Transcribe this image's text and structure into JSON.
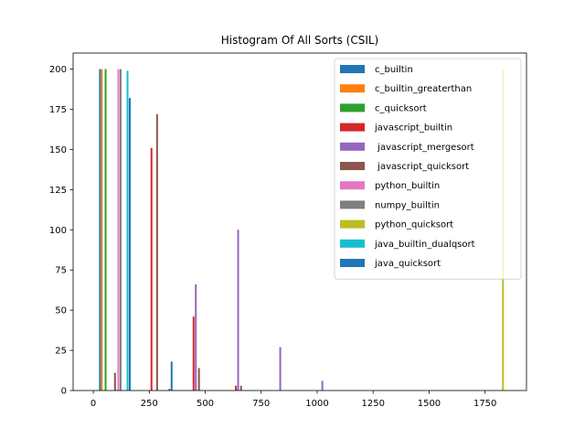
{
  "chart_data": {
    "type": "bar",
    "title": "Histogram Of All Sorts (CSIL)",
    "xlabel": "",
    "ylabel": "",
    "xlim": [
      -90,
      1935
    ],
    "ylim": [
      0,
      210
    ],
    "x_ticks": [
      0,
      250,
      500,
      750,
      1000,
      1250,
      1500,
      1750
    ],
    "y_ticks": [
      0,
      25,
      50,
      75,
      100,
      125,
      150,
      175,
      200
    ],
    "grid": false,
    "legend_position": "top-right",
    "bar_width": 8.2,
    "series": [
      {
        "name": "c_builtin",
        "color": "#1f77b4",
        "bars": [
          {
            "x": 30,
            "y": 200
          }
        ]
      },
      {
        "name": "c_builtin_greaterthan",
        "color": "#ff7f0e",
        "bars": [
          {
            "x": 38,
            "y": 200
          }
        ]
      },
      {
        "name": "c_quicksort",
        "color": "#2ca02c",
        "bars": [
          {
            "x": 55,
            "y": 200
          }
        ]
      },
      {
        "name": "javascript_builtin",
        "color": "#d62728",
        "bars": [
          {
            "x": 260,
            "y": 151
          },
          {
            "x": 448,
            "y": 46
          },
          {
            "x": 637,
            "y": 3
          }
        ]
      },
      {
        "name": " javascript_mergesort",
        "color": "#9467bd",
        "bars": [
          {
            "x": 458,
            "y": 66
          },
          {
            "x": 647,
            "y": 100
          },
          {
            "x": 835,
            "y": 27
          },
          {
            "x": 1023,
            "y": 6
          }
        ]
      },
      {
        "name": " javascript_quicksort",
        "color": "#8c564b",
        "bars": [
          {
            "x": 97,
            "y": 11
          },
          {
            "x": 285,
            "y": 172
          },
          {
            "x": 472,
            "y": 14
          },
          {
            "x": 660,
            "y": 3
          }
        ]
      },
      {
        "name": "python_builtin",
        "color": "#e377c2",
        "bars": [
          {
            "x": 112,
            "y": 200
          }
        ]
      },
      {
        "name": "numpy_builtin",
        "color": "#7f7f7f",
        "bars": [
          {
            "x": 122,
            "y": 200
          }
        ]
      },
      {
        "name": "python_quicksort",
        "color": "#bcbd22",
        "bars": [
          {
            "x": 1830,
            "y": 200
          }
        ]
      },
      {
        "name": "java_builtin_dualqsort",
        "color": "#17becf",
        "bars": [
          {
            "x": 153,
            "y": 199
          }
        ]
      },
      {
        "name": "java_quicksort",
        "color": "#1f77b4",
        "bars": [
          {
            "x": 163,
            "y": 182
          },
          {
            "x": 340,
            "y": 1
          },
          {
            "x": 350,
            "y": 18
          }
        ]
      }
    ]
  }
}
